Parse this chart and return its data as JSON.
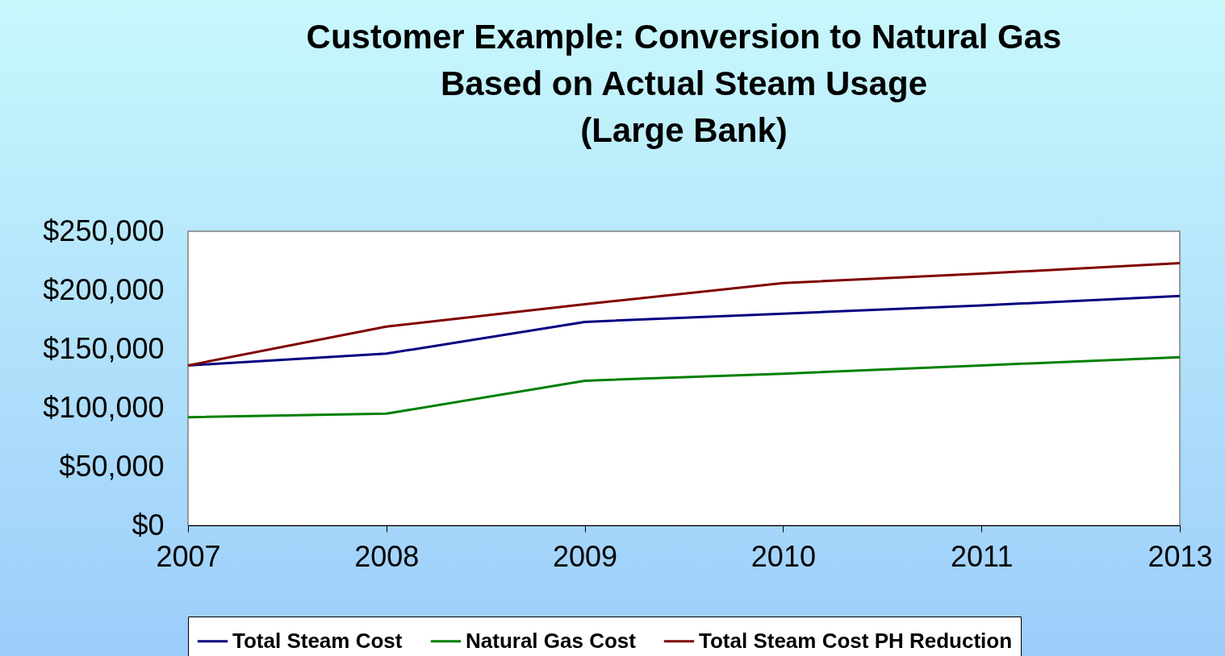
{
  "chart_data": {
    "type": "line",
    "title": [
      "Customer Example: Conversion to Natural Gas",
      "Based on Actual Steam Usage",
      "(Large Bank)"
    ],
    "categories": [
      "2007",
      "2008",
      "2009",
      "2010",
      "2011",
      "2013"
    ],
    "series": [
      {
        "name": "Total Steam Cost",
        "color": "#000080",
        "values": [
          136000,
          146000,
          173000,
          180000,
          187000,
          195000
        ]
      },
      {
        "name": "Natural Gas Cost",
        "color": "#008000",
        "values": [
          92000,
          95000,
          123000,
          129000,
          136000,
          143000
        ]
      },
      {
        "name": "Total Steam Cost PH Reduction",
        "color": "#800000",
        "values": [
          136000,
          169000,
          188000,
          206000,
          214000,
          223000
        ]
      }
    ],
    "ylim": [
      0,
      250000
    ],
    "yticks": [
      {
        "value": 0,
        "label": "$0"
      },
      {
        "value": 50000,
        "label": "$50,000"
      },
      {
        "value": 100000,
        "label": "$100,000"
      },
      {
        "value": 150000,
        "label": "$150,000"
      },
      {
        "value": 200000,
        "label": "$200,000"
      },
      {
        "value": 250000,
        "label": "$250,000"
      }
    ],
    "legend": "bottom"
  }
}
